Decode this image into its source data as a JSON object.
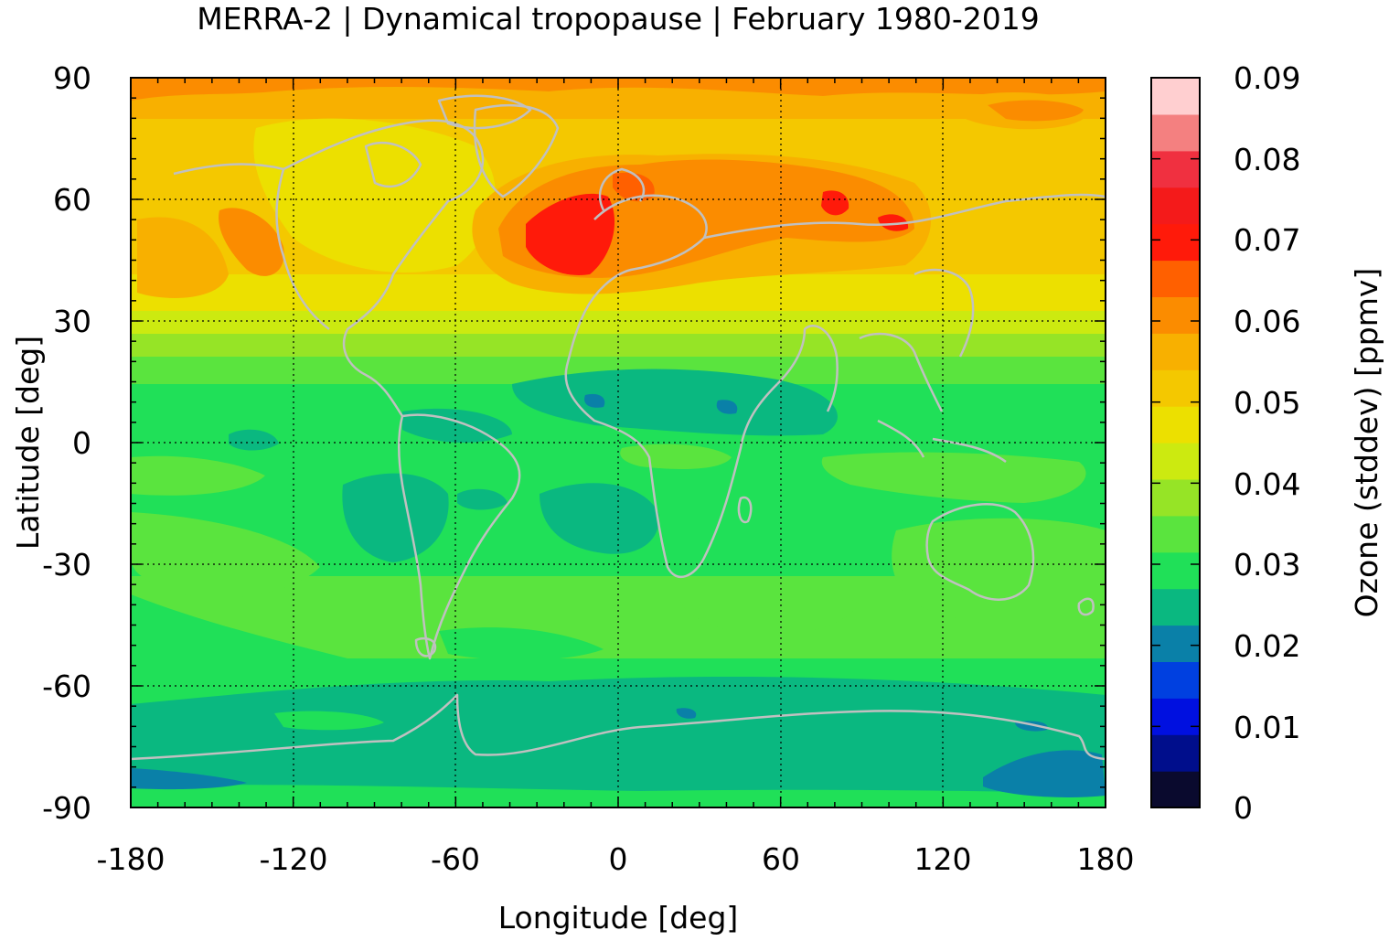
{
  "title": "MERRA-2 | Dynamical tropopause | February 1980-2019",
  "xaxis": {
    "label": "Longitude [deg]",
    "ticks": [
      "-180",
      "-120",
      "-60",
      "0",
      "60",
      "120",
      "180"
    ],
    "range": [
      -180,
      180
    ]
  },
  "yaxis": {
    "label": "Latitude [deg]",
    "ticks": [
      "90",
      "60",
      "30",
      "0",
      "-30",
      "-60",
      "-90"
    ],
    "range": [
      -90,
      90
    ]
  },
  "colorbar": {
    "label": "Ozone (stddev) [ppmv]",
    "ticks": [
      "0.09",
      "0.08",
      "0.07",
      "0.06",
      "0.05",
      "0.04",
      "0.03",
      "0.02",
      "0.01",
      "0"
    ],
    "range": [
      0,
      0.09
    ],
    "colors": [
      "#0a0a2e",
      "#000e8c",
      "#0010e0",
      "#0040e0",
      "#0a80a8",
      "#0ab880",
      "#20e058",
      "#5ae43e",
      "#96e426",
      "#ccea10",
      "#ece000",
      "#f4c800",
      "#f8b000",
      "#fb8c00",
      "#ff6000",
      "#ff1a0a",
      "#f41a1a",
      "#f03040",
      "#f48080",
      "#ffcfd0"
    ]
  },
  "chart_data": {
    "type": "heatmap",
    "title": "MERRA-2 | Dynamical tropopause | February 1980-2019",
    "xlabel": "Longitude [deg]",
    "ylabel": "Latitude [deg]",
    "xlim": [
      -180,
      180
    ],
    "ylim": [
      -90,
      90
    ],
    "colorbar_label": "Ozone (stddev) [ppmv]",
    "colorbar_range": [
      0,
      0.09
    ],
    "grid": true,
    "approx_zonal_values": [
      {
        "lat": 85,
        "value": 0.058
      },
      {
        "lat": 70,
        "value": 0.053
      },
      {
        "lat": 60,
        "value": 0.055
      },
      {
        "lat": 45,
        "value": 0.052
      },
      {
        "lat": 30,
        "value": 0.045
      },
      {
        "lat": 20,
        "value": 0.036
      },
      {
        "lat": 10,
        "value": 0.029
      },
      {
        "lat": 0,
        "value": 0.031
      },
      {
        "lat": -15,
        "value": 0.029
      },
      {
        "lat": -30,
        "value": 0.032
      },
      {
        "lat": -45,
        "value": 0.035
      },
      {
        "lat": -60,
        "value": 0.03
      },
      {
        "lat": -75,
        "value": 0.025
      },
      {
        "lat": -85,
        "value": 0.022
      }
    ],
    "max_region": {
      "lon": -20,
      "lat": 55,
      "value": 0.074
    }
  }
}
